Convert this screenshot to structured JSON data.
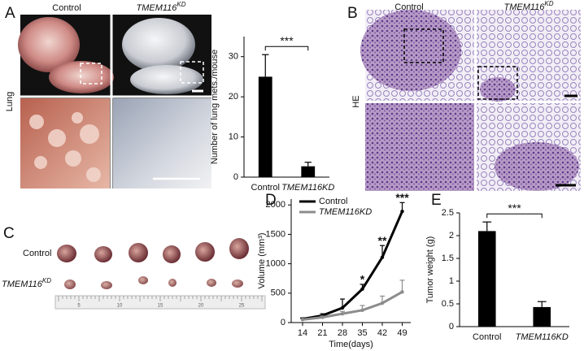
{
  "figure": {
    "panels": [
      "A",
      "B",
      "C",
      "D",
      "E"
    ],
    "panel_a": {
      "control": "Control",
      "gene": "TMEM116",
      "sup": "KD",
      "row": "Lung"
    },
    "panel_b": {
      "control": "Control",
      "gene": "TMEM116",
      "sup": "KD",
      "row": "HE"
    },
    "panel_c": {
      "control": "Control",
      "gene": "TMEM116",
      "sup": "KD",
      "ruler": [
        "5",
        "10",
        "15",
        "20",
        "25"
      ]
    }
  },
  "chart_data": [
    {
      "type": "bar",
      "ylabel": "Number of lung mets./mouse",
      "categories": [
        "Control",
        "TMEM116KD"
      ],
      "values": [
        25,
        2.7
      ],
      "errors": [
        5.5,
        1
      ],
      "color": "#000000",
      "ylim": [
        0,
        35
      ],
      "yticks": [
        0,
        10,
        20,
        30
      ],
      "significance": "***"
    },
    {
      "type": "line",
      "ylabel": "Volume (mm³)",
      "xlabel": "Time(days)",
      "x": [
        14,
        21,
        28,
        35,
        42,
        49
      ],
      "xlim": [
        10,
        52
      ],
      "xticks": [
        14,
        21,
        28,
        35,
        42,
        49
      ],
      "ylim": [
        0,
        2100
      ],
      "yticks": [
        0,
        500,
        1000,
        1500,
        2000
      ],
      "series": [
        {
          "name": "Control",
          "color": "#000000",
          "values": [
            60,
            120,
            250,
            570,
            1110,
            1890
          ],
          "errors": [
            20,
            30,
            150,
            80,
            200,
            150
          ],
          "significance": [
            null,
            null,
            null,
            "*",
            "**",
            "***"
          ]
        },
        {
          "name": "TMEM116KD",
          "color": "#8c8c8c",
          "values": [
            50,
            90,
            150,
            210,
            330,
            520
          ],
          "errors": [
            15,
            20,
            40,
            80,
            120,
            200
          ]
        }
      ]
    },
    {
      "type": "bar",
      "ylabel": "Tumor weight (g)",
      "categories": [
        "Control",
        "TMEM116KD"
      ],
      "values": [
        2.1,
        0.43
      ],
      "errors": [
        0.2,
        0.12
      ],
      "color": "#000000",
      "ylim": [
        0,
        2.5
      ],
      "yticks": [
        0,
        0.5,
        1,
        1.5,
        2,
        2.5
      ],
      "significance": "***"
    }
  ]
}
